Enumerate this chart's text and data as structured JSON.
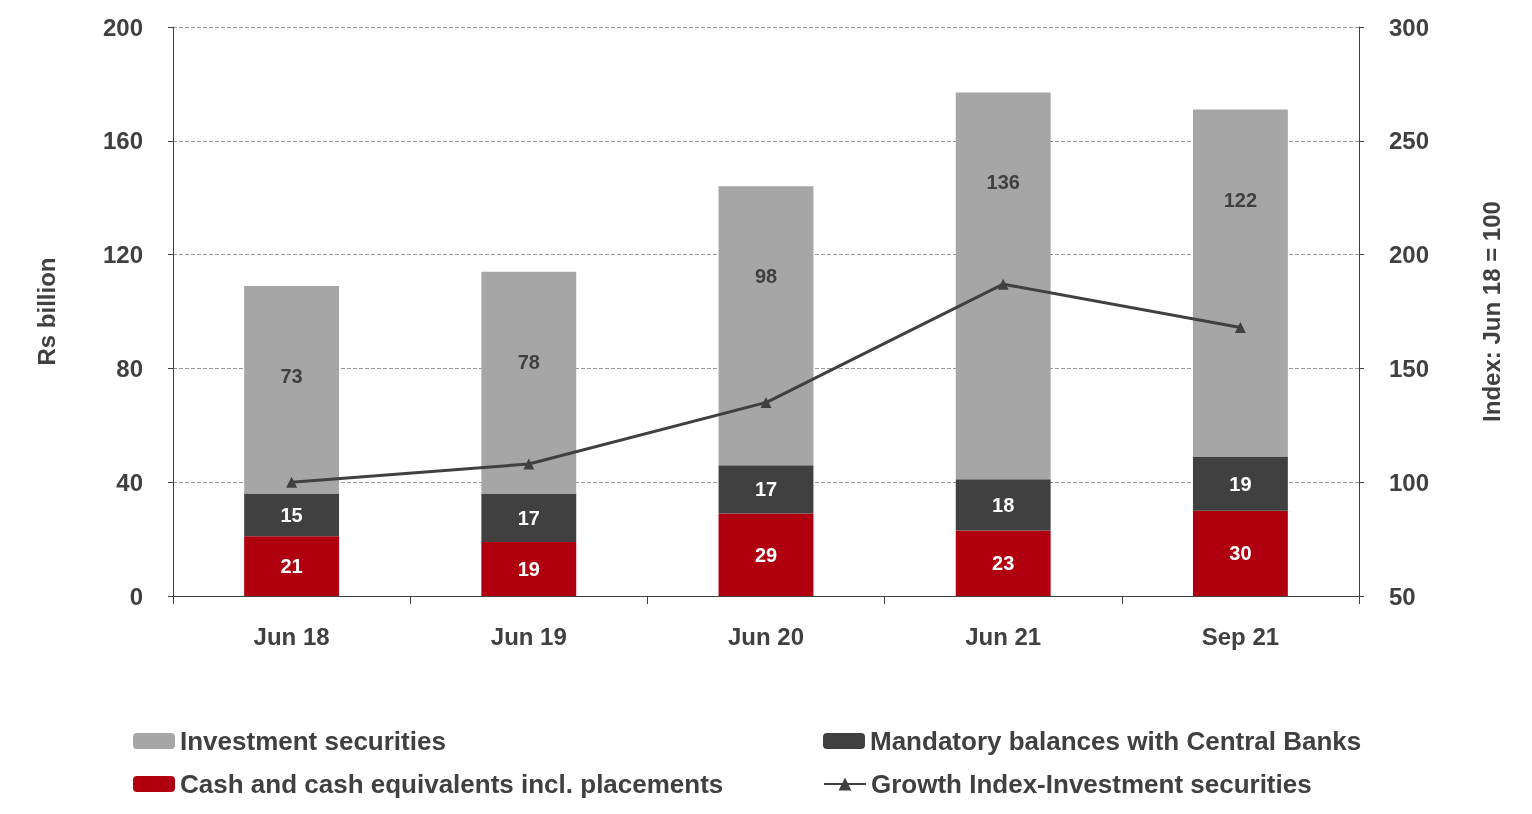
{
  "chart_data": {
    "type": "bar",
    "stacked": true,
    "ylabel": "Rs billion",
    "y2label": "Index: Jun 18 = 100",
    "categories": [
      "Jun 18",
      "Jun 19",
      "Jun 20",
      "Jun 21",
      "Sep 21"
    ],
    "series": [
      {
        "name": "Cash and cash equivalents incl. placements",
        "color": "#b0000f",
        "values": [
          21,
          19,
          29,
          23,
          30
        ],
        "value_labels": [
          "21",
          "19",
          "29",
          "23",
          "30"
        ]
      },
      {
        "name": "Mandatory balances with Central Banks",
        "color": "#404040",
        "values": [
          15,
          17,
          17,
          18,
          19
        ],
        "value_labels": [
          "15",
          "17",
          "17",
          "18",
          "19"
        ]
      },
      {
        "name": "Investment securities",
        "color": "#a6a6a6",
        "values": [
          73,
          78,
          98,
          136,
          122
        ],
        "value_labels": [
          "73",
          "78",
          "98",
          "136",
          "122"
        ]
      },
      {
        "name": "Growth Index-Investment securities",
        "type": "line",
        "axis": "y2",
        "color": "#404040",
        "marker": "triangle",
        "values": [
          100,
          108,
          135,
          187,
          168
        ]
      }
    ],
    "ylim": [
      0,
      200
    ],
    "yticks": [
      0,
      40,
      80,
      120,
      160,
      200
    ],
    "y2lim": [
      50,
      300
    ],
    "y2ticks": [
      50,
      100,
      150,
      200,
      250,
      300
    ],
    "grid": "y",
    "legend": "bottom"
  }
}
